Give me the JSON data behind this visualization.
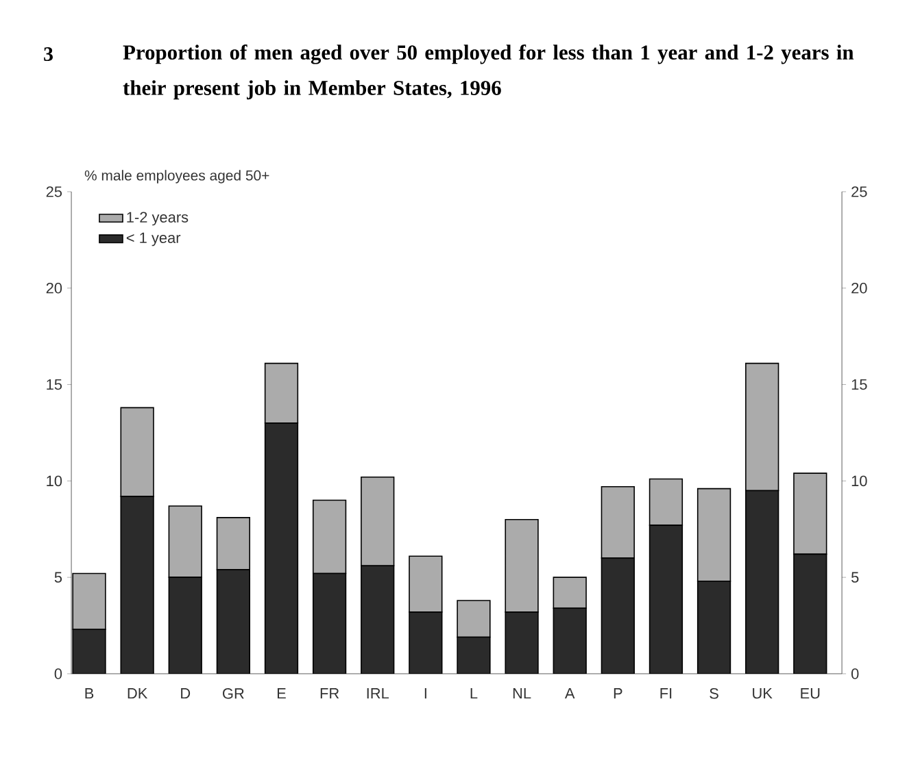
{
  "chart_data": {
    "type": "bar",
    "stacked": true,
    "title": "Proportion of men aged over 50 employed for less than 1 year and 1-2 years in their present job in Member States, 1996",
    "ylabel": "% male employees aged 50+",
    "annotations": [
      "3"
    ],
    "categories": [
      "B",
      "DK",
      "D",
      "GR",
      "E",
      "FR",
      "IRL",
      "I",
      "L",
      "NL",
      "A",
      "P",
      "FI",
      "S",
      "UK",
      "EU"
    ],
    "series": [
      {
        "name": "< 1 year",
        "color": "#2b2b2b",
        "values": [
          2.3,
          9.2,
          5.0,
          5.4,
          13.0,
          5.2,
          5.6,
          3.2,
          1.9,
          3.2,
          3.4,
          6.0,
          7.7,
          4.8,
          9.5,
          6.2
        ]
      },
      {
        "name": "1-2 years",
        "color": "#ababab",
        "values": [
          2.9,
          4.6,
          3.7,
          2.7,
          3.1,
          3.8,
          4.6,
          2.9,
          1.9,
          4.8,
          1.6,
          3.7,
          2.4,
          4.8,
          6.6,
          4.2
        ]
      }
    ],
    "ylim": [
      0,
      25
    ],
    "yticks": [
      0,
      5,
      10,
      15,
      20,
      25
    ],
    "y2lim": [
      0,
      25
    ],
    "y2ticks": [
      0,
      5,
      10,
      15,
      20,
      25
    ],
    "legend": "top left",
    "grid": false
  }
}
